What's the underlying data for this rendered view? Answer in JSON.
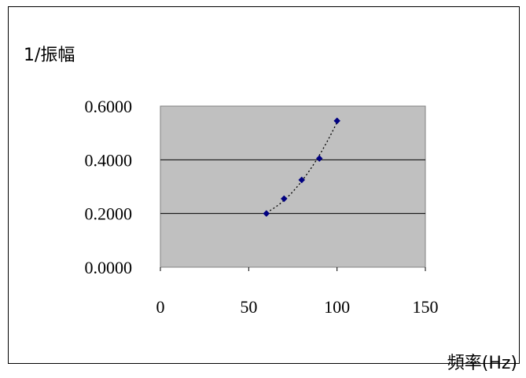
{
  "chart_data": {
    "type": "scatter",
    "title": "",
    "xlabel": "頻率(Hz)",
    "ylabel": "1/振幅",
    "xlim": [
      0,
      150
    ],
    "ylim": [
      0,
      0.6
    ],
    "xticks": [
      "0",
      "50",
      "100",
      "150"
    ],
    "yticks": [
      "0.0000",
      "0.2000",
      "0.4000",
      "0.6000"
    ],
    "grid": "horizontal",
    "trendline": "dotted",
    "plot_background": "#c0c0c0",
    "marker_color": "#000080",
    "x": [
      60,
      70,
      80,
      90,
      100
    ],
    "y": [
      0.2,
      0.255,
      0.325,
      0.405,
      0.545
    ]
  }
}
